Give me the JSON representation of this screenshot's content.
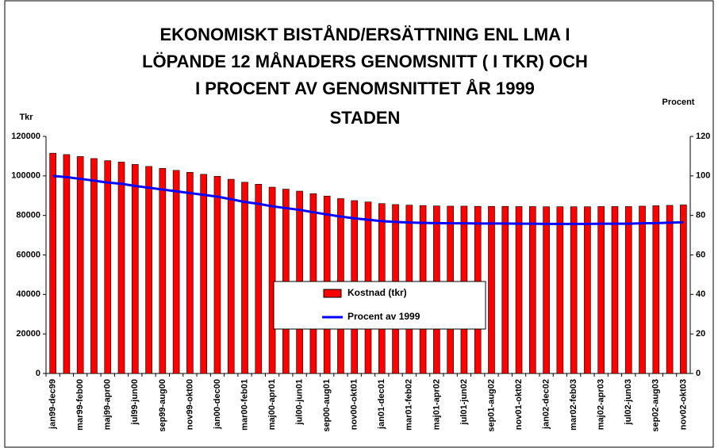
{
  "chart_data": {
    "type": "bar",
    "title_lines": [
      "EKONOMISKT BISTÅND/ERSÄTTNING ENL LMA I",
      "LÖPANDE 12 MÅNADERS GENOMSNITT ( I TKR) OCH",
      "I PROCENT AV GENOMSNITTET ÅR 1999",
      "STADEN"
    ],
    "y_label": "Tkr",
    "y2_label": "Procent",
    "categories": [
      "jan99-dec99",
      null,
      "mar99-feb00",
      null,
      "maj99-apr00",
      null,
      "jul99-jun00",
      null,
      "sep99-aug00",
      null,
      "nov99-okt00",
      null,
      "jan00-dec00",
      null,
      "mar00-feb01",
      null,
      "maj00-apr01",
      null,
      "jul00-jun01",
      null,
      "sep00-aug01",
      null,
      "nov00-okt01",
      null,
      "jan01-dec01",
      null,
      "mar01-feb02",
      null,
      "maj01-apr02",
      null,
      "jul01-jun02",
      null,
      "sep01-aug02",
      null,
      "nov01-okt02",
      null,
      "jan02-dec02",
      null,
      "mar02-feb03",
      null,
      "maj02-apr03",
      null,
      "jul02-jun03",
      null,
      "sep02-aug03",
      null,
      "nov02-okt03"
    ],
    "series": [
      {
        "name": "Kostnad (tkr)",
        "type": "bar",
        "color": "#ff0000",
        "values": [
          111500,
          110800,
          109800,
          108800,
          107700,
          107000,
          105800,
          104800,
          103800,
          102800,
          101800,
          100800,
          99800,
          98300,
          96800,
          95800,
          94300,
          93300,
          92300,
          91000,
          89800,
          88500,
          87500,
          86800,
          86000,
          85500,
          85200,
          85000,
          84800,
          84700,
          84700,
          84600,
          84600,
          84600,
          84500,
          84500,
          84400,
          84400,
          84400,
          84400,
          84500,
          84500,
          84500,
          84700,
          84900,
          85100,
          85300
        ]
      },
      {
        "name": "Procent av 1999",
        "type": "line",
        "axis": "y2",
        "color": "#0000ff",
        "values": [
          100,
          99.4,
          98.5,
          97.6,
          96.6,
          96.0,
          94.9,
          94.0,
          93.1,
          92.2,
          91.3,
          90.4,
          89.5,
          88.2,
          86.8,
          85.9,
          84.6,
          83.7,
          82.8,
          81.6,
          80.5,
          79.4,
          78.5,
          77.8,
          77.1,
          76.7,
          76.4,
          76.2,
          76.1,
          76.0,
          76.0,
          75.9,
          75.9,
          75.9,
          75.8,
          75.8,
          75.7,
          75.7,
          75.7,
          75.7,
          75.8,
          75.8,
          75.8,
          76.0,
          76.1,
          76.3,
          76.5
        ]
      }
    ],
    "ylim": [
      0,
      120000
    ],
    "yticks": [
      0,
      20000,
      40000,
      60000,
      80000,
      100000,
      120000
    ],
    "y2lim": [
      0,
      120
    ],
    "y2ticks": [
      0,
      20,
      40,
      60,
      80,
      100,
      120
    ]
  }
}
